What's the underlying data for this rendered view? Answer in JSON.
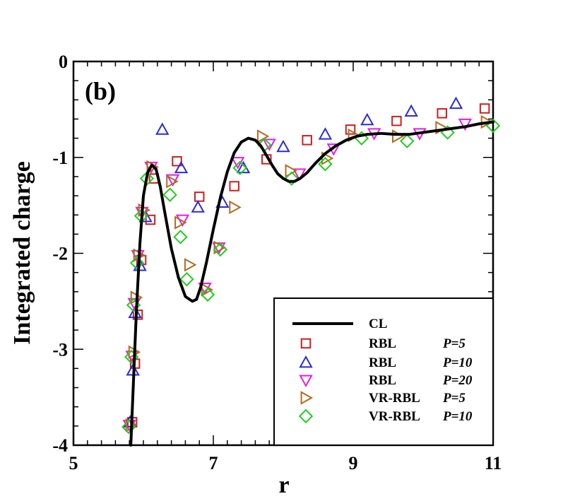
{
  "chart_data": {
    "type": "scatter",
    "panel_label": "(b)",
    "xlabel": "r",
    "ylabel": "Integrated charge",
    "xlim": [
      5,
      11
    ],
    "ylim": [
      -4,
      0
    ],
    "x_ticks": [
      5,
      7,
      9,
      11
    ],
    "x_tick_labels": [
      "5",
      "7",
      "9",
      "11"
    ],
    "y_ticks": [
      0,
      -1,
      -2,
      -3,
      -4
    ],
    "y_tick_labels": [
      "0",
      "-1",
      "-2",
      "-3",
      "-4"
    ],
    "legend_position": "bottom-right",
    "series": [
      {
        "name": "CL",
        "param": "",
        "kind": "line",
        "color": "#000000",
        "x": [
          5.82,
          5.86,
          5.9,
          5.95,
          6.0,
          6.06,
          6.12,
          6.18,
          6.24,
          6.3,
          6.4,
          6.5,
          6.6,
          6.7,
          6.76,
          6.82,
          6.9,
          7.0,
          7.1,
          7.2,
          7.3,
          7.4,
          7.5,
          7.6,
          7.68,
          7.76,
          7.84,
          7.92,
          8.0,
          8.08,
          8.16,
          8.24,
          8.34,
          8.46,
          8.6,
          8.75,
          8.9,
          9.05,
          9.2,
          9.4,
          9.6,
          9.8,
          10.0,
          10.2,
          10.4,
          10.6,
          10.8,
          11.0
        ],
        "y": [
          -4.0,
          -3.3,
          -2.6,
          -1.9,
          -1.4,
          -1.16,
          -1.08,
          -1.12,
          -1.3,
          -1.55,
          -1.95,
          -2.25,
          -2.45,
          -2.5,
          -2.48,
          -2.35,
          -2.1,
          -1.75,
          -1.42,
          -1.15,
          -0.95,
          -0.84,
          -0.8,
          -0.82,
          -0.88,
          -0.98,
          -1.08,
          -1.17,
          -1.22,
          -1.25,
          -1.25,
          -1.22,
          -1.16,
          -1.06,
          -0.96,
          -0.88,
          -0.82,
          -0.78,
          -0.76,
          -0.75,
          -0.76,
          -0.76,
          -0.74,
          -0.72,
          -0.7,
          -0.68,
          -0.65,
          -0.63
        ]
      },
      {
        "name": "RBL",
        "param": "P=5",
        "kind": "marker",
        "marker": "square",
        "color": "#cc1f1f",
        "x": [
          5.84,
          5.88,
          5.92,
          5.97,
          6.1,
          6.15,
          6.48,
          6.8,
          7.3,
          7.76,
          8.34,
          8.96,
          9.62,
          10.27,
          10.88
        ],
        "y": [
          -3.76,
          -3.15,
          -2.64,
          -2.07,
          -1.65,
          -1.22,
          -1.04,
          -1.41,
          -1.3,
          -1.02,
          -0.82,
          -0.71,
          -0.62,
          -0.54,
          -0.49
        ]
      },
      {
        "name": "RBL",
        "param": "P=10",
        "kind": "marker",
        "marker": "triangle-up",
        "color": "#2a2ae0",
        "x": [
          5.81,
          5.85,
          5.88,
          5.95,
          6.03,
          6.27,
          6.54,
          6.78,
          7.13,
          7.43,
          8.0,
          8.6,
          9.2,
          9.83,
          10.47
        ],
        "y": [
          -3.76,
          -3.22,
          -2.62,
          -2.13,
          -1.62,
          -0.71,
          -1.11,
          -1.52,
          -1.47,
          -1.11,
          -0.89,
          -0.76,
          -0.61,
          -0.52,
          -0.44
        ]
      },
      {
        "name": "RBL",
        "param": "P=20",
        "kind": "marker",
        "marker": "triangle-down",
        "color": "#e61ce6",
        "x": [
          5.8,
          5.84,
          5.87,
          5.92,
          5.98,
          6.11,
          6.42,
          6.56,
          6.88,
          7.08,
          7.35,
          7.8,
          8.23,
          8.72,
          9.3,
          9.95,
          10.6
        ],
        "y": [
          -3.79,
          -3.07,
          -2.52,
          -2.02,
          -1.57,
          -1.1,
          -1.23,
          -1.65,
          -2.36,
          -1.94,
          -1.05,
          -0.86,
          -1.17,
          -0.91,
          -0.75,
          -0.75,
          -0.65
        ]
      },
      {
        "name": "VR-RBL",
        "param": "P=5",
        "kind": "marker",
        "marker": "triangle-right",
        "color": "#b56a1e",
        "x": [
          5.82,
          5.86,
          5.89,
          5.93,
          6.0,
          6.12,
          6.4,
          6.52,
          6.66,
          6.9,
          7.08,
          7.3,
          7.7,
          8.1,
          8.62,
          9.0,
          9.63,
          10.25,
          10.9
        ],
        "y": [
          -3.79,
          -3.03,
          -2.46,
          -2.02,
          -1.55,
          -1.1,
          -1.25,
          -1.68,
          -2.12,
          -2.38,
          -1.94,
          -1.52,
          -0.78,
          -1.14,
          -1.01,
          -0.77,
          -0.78,
          -0.69,
          -0.63
        ]
      },
      {
        "name": "VR-RBL",
        "param": "P=10",
        "kind": "marker",
        "marker": "diamond",
        "color": "#22cc22",
        "x": [
          5.79,
          5.83,
          5.86,
          5.91,
          5.97,
          6.05,
          6.38,
          6.53,
          6.62,
          6.92,
          7.1,
          7.38,
          7.73,
          8.12,
          8.6,
          9.12,
          9.77,
          10.35,
          11.0
        ],
        "y": [
          -3.81,
          -3.08,
          -2.54,
          -2.1,
          -1.61,
          -1.22,
          -1.39,
          -1.83,
          -2.27,
          -2.43,
          -1.96,
          -1.11,
          -0.87,
          -1.22,
          -1.07,
          -0.8,
          -0.83,
          -0.74,
          -0.67
        ]
      }
    ]
  }
}
